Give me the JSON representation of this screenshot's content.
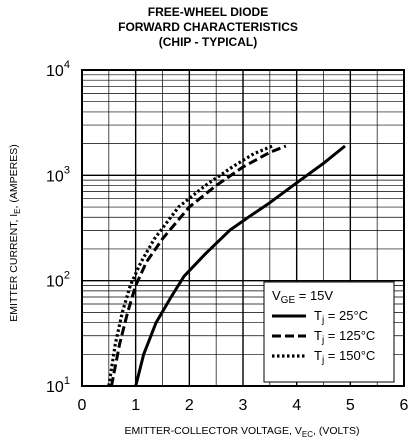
{
  "chart_data": {
    "type": "line",
    "title_lines": [
      "FREE-WHEEL DIODE",
      "FORWARD CHARACTERISTICS",
      "(CHIP - TYPICAL)"
    ],
    "xlabel": "EMITTER-COLLECTOR VOLTAGE, V",
    "xlabel_sub": "EC",
    "xlabel_unit": ", (VOLTS)",
    "ylabel": "EMITTER CURRENT, I",
    "ylabel_sub": "E",
    "ylabel_unit": ", (AMPERES)",
    "x_scale": "linear",
    "y_scale": "log",
    "xlim": [
      0,
      6
    ],
    "ylim": [
      10,
      10000
    ],
    "x_ticks": [
      {
        "value": 0,
        "label": "0"
      },
      {
        "value": 1,
        "label": "1"
      },
      {
        "value": 2,
        "label": "2"
      },
      {
        "value": 3,
        "label": "3"
      },
      {
        "value": 4,
        "label": "4"
      },
      {
        "value": 5,
        "label": "5"
      },
      {
        "value": 6,
        "label": "6"
      }
    ],
    "y_ticks": [
      {
        "value": 10,
        "base": "10",
        "exp": "1"
      },
      {
        "value": 100,
        "base": "10",
        "exp": "2"
      },
      {
        "value": 1000,
        "base": "10",
        "exp": "3"
      },
      {
        "value": 10000,
        "base": "10",
        "exp": "4"
      }
    ],
    "grid": true,
    "legend": {
      "placement": "bottom-right",
      "header_main": "V",
      "header_sub": "GE",
      "header_value": " = 15V",
      "entries": [
        {
          "main": "T",
          "sub": "j",
          "value": " = 25°C",
          "dash": "solid"
        },
        {
          "main": "T",
          "sub": "j",
          "value": " = 125°C",
          "dash": "dashed"
        },
        {
          "main": "T",
          "sub": "j",
          "value": " = 150°C",
          "dash": "dotted"
        }
      ]
    },
    "series": [
      {
        "name": "Tj = 25°C",
        "dash": "solid",
        "points": [
          [
            1.0,
            10
          ],
          [
            1.15,
            20
          ],
          [
            1.38,
            40
          ],
          [
            1.66,
            70
          ],
          [
            1.9,
            110
          ],
          [
            2.3,
            180
          ],
          [
            2.75,
            300
          ],
          [
            3.1,
            400
          ],
          [
            3.5,
            550
          ],
          [
            4.0,
            850
          ],
          [
            4.5,
            1300
          ],
          [
            4.9,
            1900
          ]
        ]
      },
      {
        "name": "Tj = 125°C",
        "dash": "dashed",
        "points": [
          [
            0.55,
            10
          ],
          [
            0.7,
            25
          ],
          [
            0.85,
            50
          ],
          [
            1.0,
            90
          ],
          [
            1.2,
            150
          ],
          [
            1.5,
            250
          ],
          [
            2.0,
            500
          ],
          [
            2.5,
            800
          ],
          [
            3.0,
            1200
          ],
          [
            3.5,
            1650
          ],
          [
            3.8,
            1900
          ]
        ]
      },
      {
        "name": "Tj = 150°C",
        "dash": "dotted",
        "points": [
          [
            0.5,
            10
          ],
          [
            0.62,
            25
          ],
          [
            0.75,
            50
          ],
          [
            0.9,
            90
          ],
          [
            1.1,
            150
          ],
          [
            1.35,
            250
          ],
          [
            1.8,
            500
          ],
          [
            2.3,
            800
          ],
          [
            2.8,
            1200
          ],
          [
            3.2,
            1600
          ],
          [
            3.55,
            1900
          ]
        ]
      }
    ]
  }
}
